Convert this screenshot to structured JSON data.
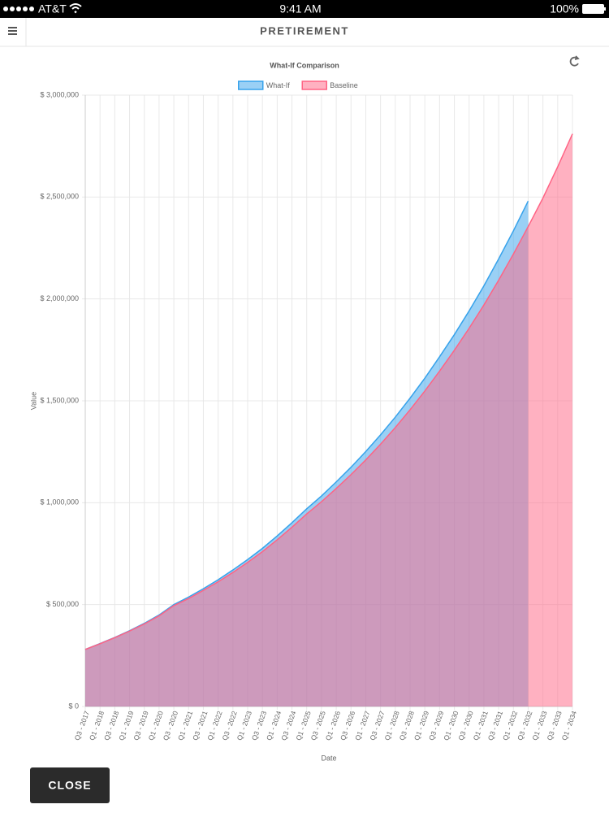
{
  "status_bar": {
    "carrier": "AT&T",
    "time": "9:41 AM",
    "battery": "100%"
  },
  "nav": {
    "title": "PRETIREMENT"
  },
  "chart_data": {
    "type": "area",
    "title": "What-If Comparison",
    "x_label": "Date",
    "y_label": "Value",
    "legend": "top",
    "grid": true,
    "categories": [
      "Q3 - 2017",
      "Q1 - 2018",
      "Q3 - 2018",
      "Q1 - 2019",
      "Q3 - 2019",
      "Q1 - 2020",
      "Q3 - 2020",
      "Q1 - 2021",
      "Q3 - 2021",
      "Q1 - 2022",
      "Q3 - 2022",
      "Q1 - 2023",
      "Q3 - 2023",
      "Q1 - 2024",
      "Q3 - 2024",
      "Q1 - 2025",
      "Q3 - 2025",
      "Q1 - 2026",
      "Q3 - 2026",
      "Q1 - 2027",
      "Q3 - 2027",
      "Q1 - 2028",
      "Q3 - 2028",
      "Q1 - 2029",
      "Q3 - 2029",
      "Q1 - 2030",
      "Q3 - 2030",
      "Q1 - 2031",
      "Q3 - 2031",
      "Q1 - 2032",
      "Q3 - 2032",
      "Q1 - 2033",
      "Q3 - 2033",
      "Q1 - 2034"
    ],
    "series": [
      {
        "name": "What-If",
        "color": "#36a2eb",
        "fill": "rgba(54,162,235,0.5)",
        "values": [
          280000,
          309000,
          339000,
          372000,
          408000,
          449000,
          500000,
          537000,
          578000,
          622000,
          670000,
          721000,
          776000,
          837000,
          902000,
          970000,
          1033000,
          1102000,
          1174000,
          1251000,
          1333000,
          1420000,
          1513000,
          1611000,
          1716000,
          1825000,
          1941000,
          2064000,
          2196000,
          2334000,
          2480000,
          null,
          null,
          null
        ]
      },
      {
        "name": "Baseline",
        "color": "#ff6384",
        "fill": "rgba(255,99,132,0.5)",
        "values": [
          280000,
          308000,
          338000,
          370000,
          405000,
          445000,
          495000,
          530000,
          570000,
          612000,
          658000,
          707000,
          760000,
          818000,
          880000,
          945000,
          1005000,
          1070000,
          1138000,
          1210000,
          1287000,
          1369000,
          1456000,
          1548000,
          1646000,
          1748000,
          1856000,
          1970000,
          2092000,
          2220000,
          2355000,
          2495000,
          2648000,
          2810000
        ]
      }
    ],
    "ylim": [
      0,
      3000000
    ],
    "yticks": [
      {
        "value": 0,
        "label": "$ 0"
      },
      {
        "value": 500000,
        "label": "$ 500,000"
      },
      {
        "value": 1000000,
        "label": "$ 1,000,000"
      },
      {
        "value": 1500000,
        "label": "$ 1,500,000"
      },
      {
        "value": 2000000,
        "label": "$ 2,000,000"
      },
      {
        "value": 2500000,
        "label": "$ 2,500,000"
      },
      {
        "value": 3000000,
        "label": "$ 3,000,000"
      }
    ]
  },
  "close_button": {
    "label": "CLOSE"
  }
}
